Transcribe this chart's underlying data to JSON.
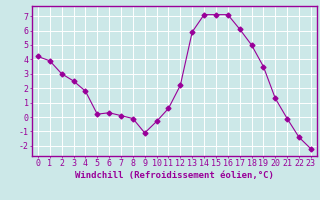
{
  "x": [
    0,
    1,
    2,
    3,
    4,
    5,
    6,
    7,
    8,
    9,
    10,
    11,
    12,
    13,
    14,
    15,
    16,
    17,
    18,
    19,
    20,
    21,
    22,
    23
  ],
  "y": [
    4.2,
    3.9,
    3.0,
    2.5,
    1.8,
    0.2,
    0.3,
    0.1,
    -0.1,
    -1.1,
    -0.3,
    0.6,
    2.2,
    5.9,
    7.1,
    7.1,
    7.1,
    6.1,
    5.0,
    3.5,
    1.3,
    -0.1,
    -1.4,
    -2.2
  ],
  "line_color": "#990099",
  "marker": "D",
  "marker_size": 2.5,
  "bg_color": "#cce8e8",
  "grid_color": "#ffffff",
  "xlabel": "Windchill (Refroidissement éolien,°C)",
  "ylabel_ticks": [
    -2,
    -1,
    0,
    1,
    2,
    3,
    4,
    5,
    6,
    7
  ],
  "xlim": [
    -0.5,
    23.5
  ],
  "ylim": [
    -2.7,
    7.7
  ],
  "tick_color": "#990099",
  "label_color": "#990099",
  "spine_color": "#990099",
  "font_size": 6.0
}
